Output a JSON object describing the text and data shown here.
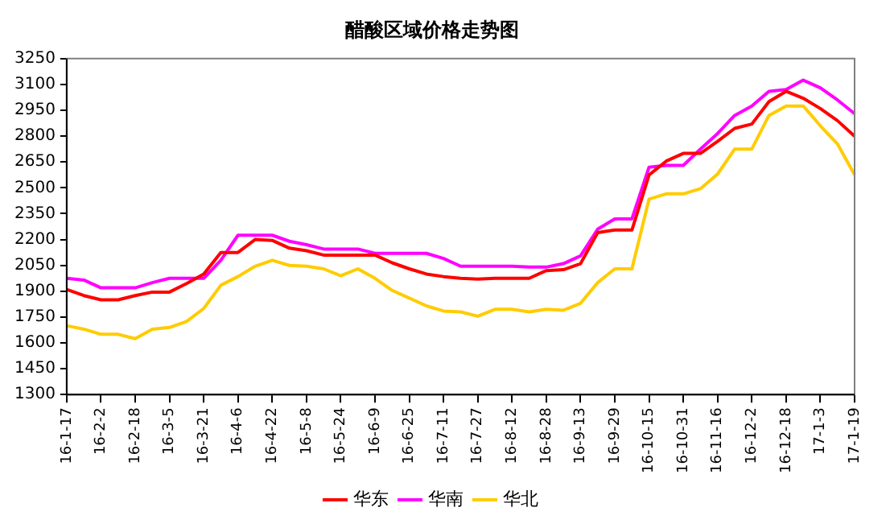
{
  "chart_data": {
    "type": "line",
    "title": "醋酸区域价格走势图",
    "categories": [
      "16-1-17",
      null,
      "16-2-2",
      null,
      "16-2-18",
      null,
      "16-3-5",
      null,
      "16-3-21",
      null,
      "16-4-6",
      null,
      "16-4-22",
      null,
      "16-5-8",
      null,
      "16-5-24",
      null,
      "16-6-9",
      null,
      "16-6-25",
      null,
      "16-7-11",
      null,
      "16-7-27",
      null,
      "16-8-12",
      null,
      "16-8-28",
      null,
      "16-9-13",
      null,
      "16-9-29",
      null,
      "16-10-15",
      null,
      "16-10-31",
      null,
      "16-11-16",
      null,
      "16-12-2",
      null,
      "16-12-18",
      null,
      "17-1-3",
      null,
      "17-1-19"
    ],
    "series": [
      {
        "name": "华东",
        "color": "#ff0000",
        "values": [
          1910,
          1875,
          1850,
          1850,
          1875,
          1895,
          1895,
          1945,
          2000,
          2125,
          2125,
          2200,
          2195,
          2150,
          2135,
          2110,
          2110,
          2110,
          2110,
          2065,
          2030,
          2000,
          1985,
          1975,
          1970,
          1975,
          1975,
          1975,
          2020,
          2025,
          2060,
          2240,
          2255,
          2255,
          2575,
          2655,
          2700,
          2700,
          2770,
          2845,
          2870,
          3000,
          3060,
          3020,
          2960,
          2890,
          2800
        ]
      },
      {
        "name": "华南",
        "color": "#ff00ff",
        "values": [
          1975,
          1965,
          1920,
          1920,
          1920,
          1950,
          1975,
          1975,
          1975,
          2080,
          2225,
          2225,
          2225,
          2190,
          2170,
          2145,
          2145,
          2145,
          2120,
          2120,
          2120,
          2120,
          2090,
          2045,
          2045,
          2045,
          2045,
          2040,
          2040,
          2060,
          2105,
          2260,
          2320,
          2320,
          2620,
          2630,
          2630,
          2725,
          2815,
          2920,
          2975,
          3060,
          3070,
          3125,
          3080,
          3010,
          2930
        ]
      },
      {
        "name": "华北",
        "color": "#ffcc00",
        "values": [
          1700,
          1680,
          1650,
          1650,
          1625,
          1680,
          1690,
          1725,
          1800,
          1935,
          1985,
          2045,
          2080,
          2050,
          2045,
          2030,
          1990,
          2030,
          1975,
          1905,
          1860,
          1815,
          1785,
          1780,
          1755,
          1795,
          1795,
          1780,
          1795,
          1790,
          1830,
          1950,
          2030,
          2030,
          2435,
          2465,
          2465,
          2495,
          2580,
          2725,
          2725,
          2920,
          2975,
          2975,
          2860,
          2755,
          2575
        ]
      }
    ],
    "ylim": [
      1300,
      3250
    ],
    "yticks": [
      1300,
      1450,
      1600,
      1750,
      1900,
      2050,
      2200,
      2350,
      2500,
      2650,
      2800,
      2950,
      3100,
      3250
    ],
    "grid": false,
    "legend": "bottom",
    "marker": "none",
    "line_style": "solid"
  }
}
